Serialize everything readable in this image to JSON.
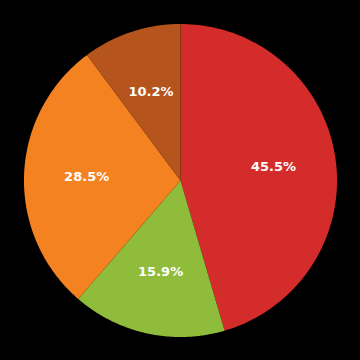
{
  "chart_data": {
    "type": "pie",
    "values": [
      45.5,
      15.9,
      28.5,
      10.2
    ],
    "value_labels": [
      "45.5%",
      "15.9%",
      "28.5%",
      "10.2%"
    ],
    "colors": [
      "#d42b2b",
      "#8fbc3b",
      "#f58220",
      "#b5541c"
    ],
    "data_labels": true
  }
}
